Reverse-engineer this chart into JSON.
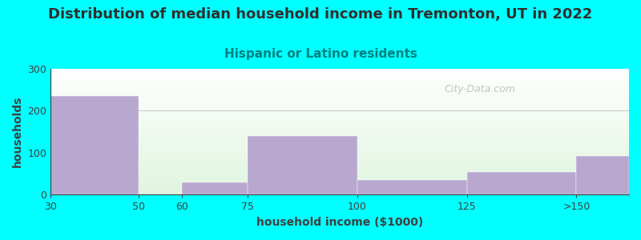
{
  "title": "Distribution of median household income in Tremonton, UT in 2022",
  "subtitle": "Hispanic or Latino residents",
  "xlabel": "household income ($1000)",
  "ylabel": "households",
  "background_color": "#00FFFF",
  "bar_color": "#B8A8D0",
  "values": [
    235,
    0,
    30,
    140,
    35,
    55,
    92
  ],
  "tick_positions": [
    0,
    2,
    3,
    4,
    6,
    8,
    9,
    11
  ],
  "tick_labels": [
    "",
    "30",
    "50",
    "60",
    "75",
    "100",
    "125",
    ">150"
  ],
  "bar_lefts": [
    0,
    3,
    4,
    6,
    8,
    9
  ],
  "bar_rights": [
    2,
    3,
    4,
    6,
    8,
    9
  ],
  "ylim": [
    0,
    300
  ],
  "yticks": [
    0,
    100,
    200,
    300
  ],
  "title_fontsize": 13,
  "subtitle_fontsize": 11,
  "subtitle_color": "#008080",
  "axis_label_fontsize": 10,
  "tick_fontsize": 9,
  "title_color": "#2F2F2F",
  "tick_color": "#404040",
  "watermark_text": "City-Data.com",
  "watermark_color": "#AAAAAA",
  "gridline_color": "#C8C8C8"
}
